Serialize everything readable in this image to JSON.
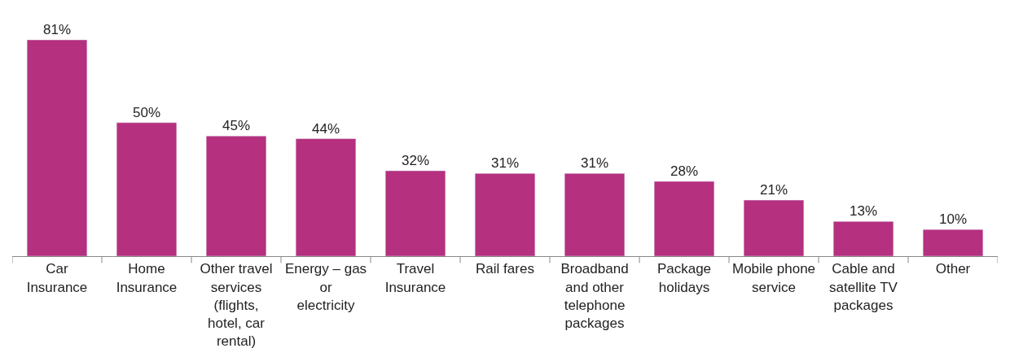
{
  "chart_data": {
    "type": "bar",
    "categories": [
      "Car Insurance",
      "Home Insurance",
      "Other travel services (flights, hotel, car rental)",
      "Energy – gas or electricity",
      "Travel Insurance",
      "Rail fares",
      "Broadband and other telephone packages",
      "Package holidays",
      "Mobile phone service",
      "Cable and satellite TV packages",
      "Other"
    ],
    "values": [
      81,
      50,
      45,
      44,
      32,
      31,
      31,
      28,
      21,
      13,
      10
    ],
    "value_labels": [
      "81%",
      "50%",
      "45%",
      "44%",
      "32%",
      "31%",
      "31%",
      "28%",
      "21%",
      "13%",
      "10%"
    ],
    "color": "#b5307f"
  }
}
